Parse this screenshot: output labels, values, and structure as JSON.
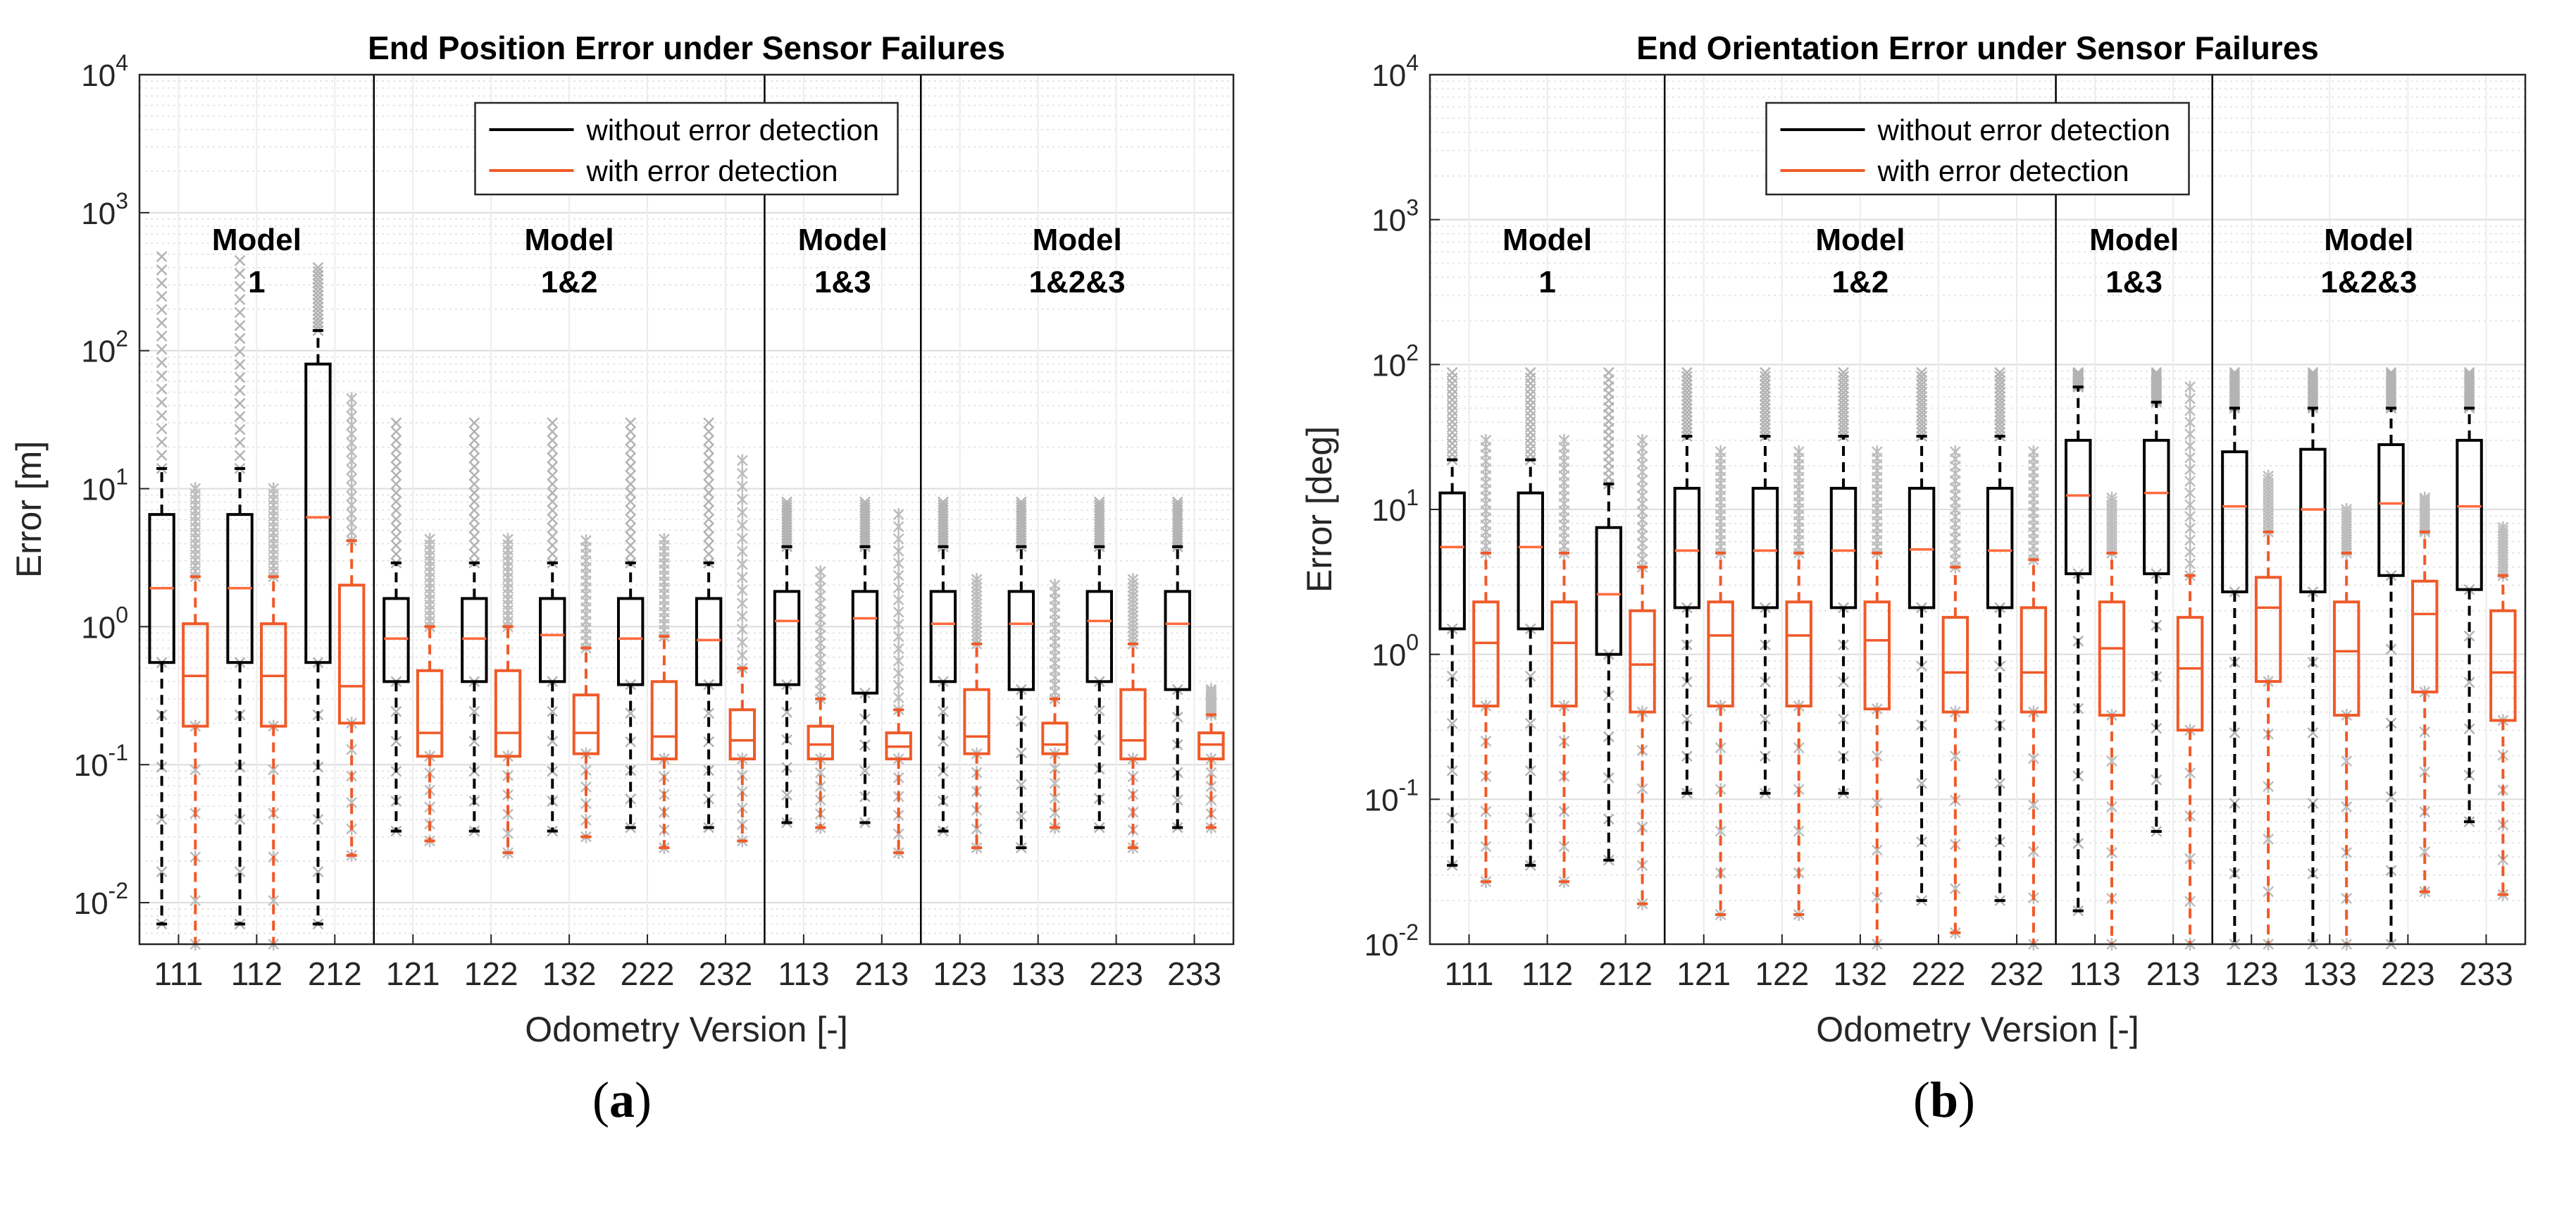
{
  "chart_data": [
    {
      "panel": "a",
      "type": "box",
      "title": "End Position Error under Sensor Failures",
      "xlabel": "Odometry Version [-]",
      "ylabel": "Error [m]",
      "yscale": "log",
      "ylim": [
        0.005,
        10000
      ],
      "yticks": [
        "10^-2",
        "10^-1",
        "10^0",
        "10^1",
        "10^2",
        "10^3",
        "10^4"
      ],
      "grid": true,
      "legend": {
        "position": "top-center",
        "entries": [
          {
            "label": "without error detection",
            "color": "#000000"
          },
          {
            "label": "with error detection",
            "color": "#ef5a28"
          }
        ]
      },
      "categories": [
        "111",
        "112",
        "212",
        "121",
        "122",
        "132",
        "222",
        "232",
        "113",
        "213",
        "123",
        "133",
        "223",
        "233"
      ],
      "groups": [
        {
          "label_line1": "Model",
          "label_line2": "1",
          "start": 0,
          "end": 2
        },
        {
          "label_line1": "Model",
          "label_line2": "1&2",
          "start": 3,
          "end": 7
        },
        {
          "label_line1": "Model",
          "label_line2": "1&3",
          "start": 8,
          "end": 9
        },
        {
          "label_line1": "Model",
          "label_line2": "1&2&3",
          "start": 10,
          "end": 13
        }
      ],
      "series": [
        {
          "name": "without error detection",
          "color": "#000000",
          "boxes": [
            {
              "low": 0.007,
              "q1": 0.55,
              "median": 1.9,
              "q3": 6.5,
              "high": 14,
              "out_max": 480
            },
            {
              "low": 0.007,
              "q1": 0.55,
              "median": 1.9,
              "q3": 6.5,
              "high": 14,
              "out_max": 450
            },
            {
              "low": 0.007,
              "q1": 0.55,
              "median": 6.2,
              "q3": 80,
              "high": 140,
              "out_max": 400
            },
            {
              "low": 0.033,
              "q1": 0.4,
              "median": 0.82,
              "q3": 1.6,
              "high": 2.9,
              "out_max": 30
            },
            {
              "low": 0.033,
              "q1": 0.4,
              "median": 0.82,
              "q3": 1.6,
              "high": 2.9,
              "out_max": 30
            },
            {
              "low": 0.033,
              "q1": 0.4,
              "median": 0.87,
              "q3": 1.6,
              "high": 2.9,
              "out_max": 30
            },
            {
              "low": 0.035,
              "q1": 0.38,
              "median": 0.82,
              "q3": 1.6,
              "high": 2.9,
              "out_max": 30
            },
            {
              "low": 0.035,
              "q1": 0.38,
              "median": 0.8,
              "q3": 1.6,
              "high": 2.9,
              "out_max": 30
            },
            {
              "low": 0.038,
              "q1": 0.38,
              "median": 1.1,
              "q3": 1.8,
              "high": 3.8,
              "out_max": 8
            },
            {
              "low": 0.038,
              "q1": 0.33,
              "median": 1.15,
              "q3": 1.8,
              "high": 3.8,
              "out_max": 8
            },
            {
              "low": 0.033,
              "q1": 0.4,
              "median": 1.05,
              "q3": 1.8,
              "high": 3.8,
              "out_max": 8
            },
            {
              "low": 0.025,
              "q1": 0.35,
              "median": 1.05,
              "q3": 1.8,
              "high": 3.8,
              "out_max": 8
            },
            {
              "low": 0.035,
              "q1": 0.4,
              "median": 1.1,
              "q3": 1.8,
              "high": 3.8,
              "out_max": 8
            },
            {
              "low": 0.035,
              "q1": 0.35,
              "median": 1.05,
              "q3": 1.8,
              "high": 3.8,
              "out_max": 8
            }
          ]
        },
        {
          "name": "with error detection",
          "color": "#ef5a28",
          "boxes": [
            {
              "low": 0.005,
              "q1": 0.19,
              "median": 0.44,
              "q3": 1.05,
              "high": 2.3,
              "out_max": 10
            },
            {
              "low": 0.005,
              "q1": 0.19,
              "median": 0.44,
              "q3": 1.05,
              "high": 2.3,
              "out_max": 10
            },
            {
              "low": 0.022,
              "q1": 0.2,
              "median": 0.37,
              "q3": 2.0,
              "high": 4.2,
              "out_max": 45
            },
            {
              "low": 0.028,
              "q1": 0.115,
              "median": 0.17,
              "q3": 0.48,
              "high": 1.0,
              "out_max": 4.3
            },
            {
              "low": 0.023,
              "q1": 0.115,
              "median": 0.17,
              "q3": 0.48,
              "high": 1.0,
              "out_max": 4.3
            },
            {
              "low": 0.03,
              "q1": 0.12,
              "median": 0.17,
              "q3": 0.32,
              "high": 0.7,
              "out_max": 4.2
            },
            {
              "low": 0.025,
              "q1": 0.11,
              "median": 0.16,
              "q3": 0.4,
              "high": 0.85,
              "out_max": 4.3
            },
            {
              "low": 0.028,
              "q1": 0.11,
              "median": 0.15,
              "q3": 0.25,
              "high": 0.5,
              "out_max": 16
            },
            {
              "low": 0.035,
              "q1": 0.11,
              "median": 0.14,
              "q3": 0.19,
              "high": 0.3,
              "out_max": 2.5
            },
            {
              "low": 0.023,
              "q1": 0.11,
              "median": 0.135,
              "q3": 0.17,
              "high": 0.25,
              "out_max": 6.5
            },
            {
              "low": 0.025,
              "q1": 0.12,
              "median": 0.16,
              "q3": 0.35,
              "high": 0.75,
              "out_max": 2.2
            },
            {
              "low": 0.035,
              "q1": 0.12,
              "median": 0.14,
              "q3": 0.2,
              "high": 0.3,
              "out_max": 2.0
            },
            {
              "low": 0.025,
              "q1": 0.11,
              "median": 0.15,
              "q3": 0.35,
              "high": 0.75,
              "out_max": 2.2
            },
            {
              "low": 0.035,
              "q1": 0.11,
              "median": 0.14,
              "q3": 0.17,
              "high": 0.23,
              "out_max": 0.35
            }
          ]
        }
      ]
    },
    {
      "panel": "b",
      "type": "box",
      "title": "End Orientation Error under Sensor Failures",
      "xlabel": "Odometry Version [-]",
      "ylabel": "Error [deg]",
      "yscale": "log",
      "ylim": [
        0.01,
        10000
      ],
      "yticks": [
        "10^-2",
        "10^-1",
        "10^0",
        "10^1",
        "10^2",
        "10^3",
        "10^4"
      ],
      "grid": true,
      "legend": {
        "position": "top-center",
        "entries": [
          {
            "label": "without error detection",
            "color": "#000000"
          },
          {
            "label": "with error detection",
            "color": "#ef5a28"
          }
        ]
      },
      "categories": [
        "111",
        "112",
        "212",
        "121",
        "122",
        "132",
        "222",
        "232",
        "113",
        "213",
        "123",
        "133",
        "223",
        "233"
      ],
      "groups": [
        {
          "label_line1": "Model",
          "label_line2": "1",
          "start": 0,
          "end": 2
        },
        {
          "label_line1": "Model",
          "label_line2": "1&2",
          "start": 3,
          "end": 7
        },
        {
          "label_line1": "Model",
          "label_line2": "1&3",
          "start": 8,
          "end": 9
        },
        {
          "label_line1": "Model",
          "label_line2": "1&2&3",
          "start": 10,
          "end": 13
        }
      ],
      "series": [
        {
          "name": "without error detection",
          "color": "#000000",
          "boxes": [
            {
              "low": 0.035,
              "q1": 1.5,
              "median": 5.5,
              "q3": 13,
              "high": 22,
              "out_max": 88
            },
            {
              "low": 0.035,
              "q1": 1.5,
              "median": 5.5,
              "q3": 13,
              "high": 22,
              "out_max": 88
            },
            {
              "low": 0.038,
              "q1": 1.0,
              "median": 2.6,
              "q3": 7.5,
              "high": 15,
              "out_max": 88
            },
            {
              "low": 0.11,
              "q1": 2.1,
              "median": 5.2,
              "q3": 14,
              "high": 32,
              "out_max": 88
            },
            {
              "low": 0.11,
              "q1": 2.1,
              "median": 5.2,
              "q3": 14,
              "high": 32,
              "out_max": 88
            },
            {
              "low": 0.11,
              "q1": 2.1,
              "median": 5.2,
              "q3": 14,
              "high": 32,
              "out_max": 88
            },
            {
              "low": 0.02,
              "q1": 2.1,
              "median": 5.3,
              "q3": 14,
              "high": 32,
              "out_max": 88
            },
            {
              "low": 0.02,
              "q1": 2.1,
              "median": 5.2,
              "q3": 14,
              "high": 32,
              "out_max": 88
            },
            {
              "low": 0.017,
              "q1": 3.6,
              "median": 12.5,
              "q3": 30,
              "high": 70,
              "out_max": 88
            },
            {
              "low": 0.06,
              "q1": 3.6,
              "median": 13,
              "q3": 30,
              "high": 55,
              "out_max": 88
            },
            {
              "low": 0.01,
              "q1": 2.7,
              "median": 10.5,
              "q3": 25,
              "high": 50,
              "out_max": 88
            },
            {
              "low": 0.01,
              "q1": 2.7,
              "median": 10,
              "q3": 26,
              "high": 50,
              "out_max": 88
            },
            {
              "low": 0.01,
              "q1": 3.5,
              "median": 11,
              "q3": 28,
              "high": 50,
              "out_max": 88
            },
            {
              "low": 0.07,
              "q1": 2.8,
              "median": 10.5,
              "q3": 30,
              "high": 50,
              "out_max": 88
            }
          ]
        },
        {
          "name": "with error detection",
          "color": "#ef5a28",
          "boxes": [
            {
              "low": 0.027,
              "q1": 0.44,
              "median": 1.2,
              "q3": 2.3,
              "high": 5.0,
              "out_max": 30
            },
            {
              "low": 0.027,
              "q1": 0.44,
              "median": 1.2,
              "q3": 2.3,
              "high": 5.0,
              "out_max": 30
            },
            {
              "low": 0.019,
              "q1": 0.4,
              "median": 0.85,
              "q3": 2.0,
              "high": 4.0,
              "out_max": 30
            },
            {
              "low": 0.016,
              "q1": 0.44,
              "median": 1.35,
              "q3": 2.3,
              "high": 5.0,
              "out_max": 25
            },
            {
              "low": 0.016,
              "q1": 0.44,
              "median": 1.35,
              "q3": 2.3,
              "high": 5.0,
              "out_max": 25
            },
            {
              "low": 0.01,
              "q1": 0.42,
              "median": 1.25,
              "q3": 2.3,
              "high": 5.0,
              "out_max": 25
            },
            {
              "low": 0.012,
              "q1": 0.4,
              "median": 0.75,
              "q3": 1.8,
              "high": 4.0,
              "out_max": 25
            },
            {
              "low": 0.01,
              "q1": 0.4,
              "median": 0.75,
              "q3": 2.1,
              "high": 4.5,
              "out_max": 25
            },
            {
              "low": 0.01,
              "q1": 0.38,
              "median": 1.1,
              "q3": 2.3,
              "high": 5.0,
              "out_max": 12
            },
            {
              "low": 0.01,
              "q1": 0.3,
              "median": 0.8,
              "q3": 1.8,
              "high": 3.5,
              "out_max": 70
            },
            {
              "low": 0.01,
              "q1": 0.65,
              "median": 2.1,
              "q3": 3.4,
              "high": 7.0,
              "out_max": 17
            },
            {
              "low": 0.01,
              "q1": 0.38,
              "median": 1.05,
              "q3": 2.3,
              "high": 5.0,
              "out_max": 10
            },
            {
              "low": 0.023,
              "q1": 0.55,
              "median": 1.9,
              "q3": 3.2,
              "high": 7.0,
              "out_max": 12
            },
            {
              "low": 0.022,
              "q1": 0.35,
              "median": 0.75,
              "q3": 2.0,
              "high": 3.5,
              "out_max": 7.5
            }
          ]
        }
      ]
    }
  ],
  "panel_labels": [
    "a",
    "b"
  ]
}
